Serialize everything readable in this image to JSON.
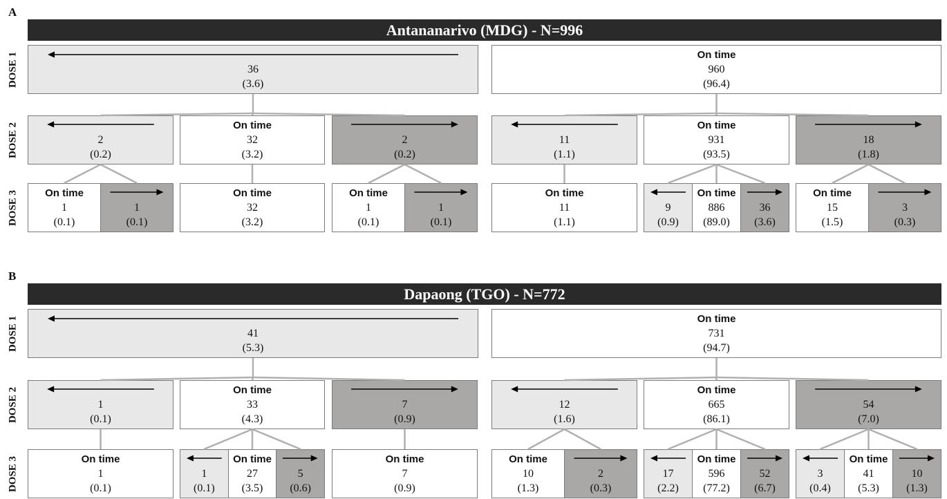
{
  "panels": [
    {
      "letter": "A",
      "title": "Antananarivo (MDG) - N=996",
      "dose_labels": [
        "DOSE 1",
        "DOSE 2",
        "DOSE 3"
      ],
      "dose1": [
        {
          "status": "early",
          "count": "36",
          "pct": "(3.6)"
        },
        {
          "status": "ontime",
          "label": "On time",
          "count": "960",
          "pct": "(96.4)"
        }
      ],
      "dose2": [
        {
          "status": "early",
          "count": "2",
          "pct": "(0.2)"
        },
        {
          "status": "ontime",
          "label": "On time",
          "count": "32",
          "pct": "(3.2)"
        },
        {
          "status": "late",
          "count": "2",
          "pct": "(0.2)"
        },
        {
          "status": "early",
          "count": "11",
          "pct": "(1.1)"
        },
        {
          "status": "ontime",
          "label": "On time",
          "count": "931",
          "pct": "(93.5)"
        },
        {
          "status": "late",
          "count": "18",
          "pct": "(1.8)"
        }
      ],
      "dose3": [
        [
          {
            "status": "ontime",
            "label": "On time",
            "count": "1",
            "pct": "(0.1)"
          },
          {
            "status": "late",
            "count": "1",
            "pct": "(0.1)"
          }
        ],
        [
          {
            "status": "ontime",
            "label": "On time",
            "count": "32",
            "pct": "(3.2)"
          }
        ],
        [
          {
            "status": "ontime",
            "label": "On time",
            "count": "1",
            "pct": "(0.1)"
          },
          {
            "status": "late",
            "count": "1",
            "pct": "(0.1)"
          }
        ],
        [
          {
            "status": "ontime",
            "label": "On time",
            "count": "11",
            "pct": "(1.1)"
          }
        ],
        [
          {
            "status": "early",
            "count": "9",
            "pct": "(0.9)"
          },
          {
            "status": "ontime",
            "label": "On time",
            "count": "886",
            "pct": "(89.0)"
          },
          {
            "status": "late",
            "count": "36",
            "pct": "(3.6)"
          }
        ],
        [
          {
            "status": "ontime",
            "label": "On time",
            "count": "15",
            "pct": "(1.5)"
          },
          {
            "status": "late",
            "count": "3",
            "pct": "(0.3)"
          }
        ]
      ]
    },
    {
      "letter": "B",
      "title": "Dapaong (TGO) - N=772",
      "dose_labels": [
        "DOSE 1",
        "DOSE 2",
        "DOSE 3"
      ],
      "dose1": [
        {
          "status": "early",
          "count": "41",
          "pct": "(5.3)"
        },
        {
          "status": "ontime",
          "label": "On time",
          "count": "731",
          "pct": "(94.7)"
        }
      ],
      "dose2": [
        {
          "status": "early",
          "count": "1",
          "pct": "(0.1)"
        },
        {
          "status": "ontime",
          "label": "On time",
          "count": "33",
          "pct": "(4.3)"
        },
        {
          "status": "late",
          "count": "7",
          "pct": "(0.9)"
        },
        {
          "status": "early",
          "count": "12",
          "pct": "(1.6)"
        },
        {
          "status": "ontime",
          "label": "On time",
          "count": "665",
          "pct": "(86.1)"
        },
        {
          "status": "late",
          "count": "54",
          "pct": "(7.0)"
        }
      ],
      "dose3": [
        [
          {
            "status": "ontime",
            "label": "On time",
            "count": "1",
            "pct": "(0.1)"
          }
        ],
        [
          {
            "status": "early",
            "count": "1",
            "pct": "(0.1)"
          },
          {
            "status": "ontime",
            "label": "On time",
            "count": "27",
            "pct": "(3.5)"
          },
          {
            "status": "late",
            "count": "5",
            "pct": "(0.6)"
          }
        ],
        [
          {
            "status": "ontime",
            "label": "On time",
            "count": "7",
            "pct": "(0.9)"
          }
        ],
        [
          {
            "status": "ontime",
            "label": "On time",
            "count": "10",
            "pct": "(1.3)"
          },
          {
            "status": "late",
            "count": "2",
            "pct": "(0.3)"
          }
        ],
        [
          {
            "status": "early",
            "count": "17",
            "pct": "(2.2)"
          },
          {
            "status": "ontime",
            "label": "On time",
            "count": "596",
            "pct": "(77.2)"
          },
          {
            "status": "late",
            "count": "52",
            "pct": "(6.7)"
          }
        ],
        [
          {
            "status": "early",
            "count": "3",
            "pct": "(0.4)"
          },
          {
            "status": "ontime",
            "label": "On time",
            "count": "41",
            "pct": "(5.3)"
          },
          {
            "status": "late",
            "count": "10",
            "pct": "(1.3)"
          }
        ]
      ]
    }
  ],
  "colors": {
    "early": "#e8e8e8",
    "late": "#aaa8a7",
    "ontime": "#ffffff",
    "title_bar": "#2a2a2a",
    "connector": "#b0b0b0"
  },
  "icons": {
    "early": "left-arrow-icon",
    "late": "right-arrow-icon"
  }
}
